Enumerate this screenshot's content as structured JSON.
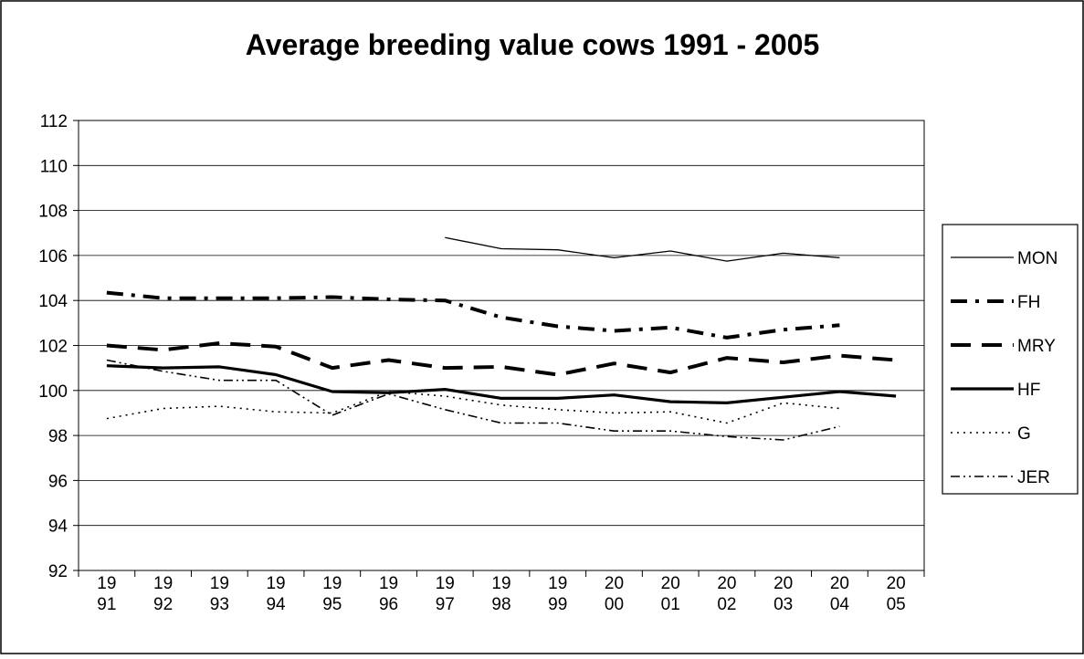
{
  "chart_data": {
    "type": "line",
    "title": "Average breeding value cows 1991 - 2005",
    "xlabel": "",
    "ylabel": "",
    "categories": [
      "1991",
      "1992",
      "1993",
      "1994",
      "1995",
      "1996",
      "1997",
      "1998",
      "1999",
      "2000",
      "2001",
      "2002",
      "2003",
      "2004",
      "2005"
    ],
    "category_labels": [
      [
        "19",
        "91"
      ],
      [
        "19",
        "92"
      ],
      [
        "19",
        "93"
      ],
      [
        "19",
        "94"
      ],
      [
        "19",
        "95"
      ],
      [
        "19",
        "96"
      ],
      [
        "19",
        "97"
      ],
      [
        "19",
        "98"
      ],
      [
        "19",
        "99"
      ],
      [
        "20",
        "00"
      ],
      [
        "20",
        "01"
      ],
      [
        "20",
        "02"
      ],
      [
        "20",
        "03"
      ],
      [
        "20",
        "04"
      ],
      [
        "20",
        "05"
      ]
    ],
    "ylim": [
      92,
      112
    ],
    "yticks": [
      92,
      94,
      96,
      98,
      100,
      102,
      104,
      106,
      108,
      110,
      112
    ],
    "grid": true,
    "legend_position": "right",
    "series": [
      {
        "name": "MON",
        "style": "thin-solid",
        "values": [
          null,
          null,
          null,
          null,
          null,
          null,
          106.8,
          106.3,
          106.25,
          105.9,
          106.2,
          105.75,
          106.1,
          105.9,
          null
        ]
      },
      {
        "name": "FH",
        "style": "thick-dash-dot",
        "values": [
          104.35,
          104.1,
          104.1,
          104.1,
          104.15,
          104.05,
          104.0,
          103.25,
          102.85,
          102.65,
          102.8,
          102.35,
          102.7,
          102.9,
          null
        ]
      },
      {
        "name": "MRY",
        "style": "thick-dash",
        "values": [
          102.0,
          101.8,
          102.1,
          101.95,
          101.0,
          101.35,
          101.0,
          101.05,
          100.7,
          101.2,
          100.8,
          101.45,
          101.25,
          101.55,
          101.35
        ]
      },
      {
        "name": "HF",
        "style": "thick-solid",
        "values": [
          101.1,
          101.0,
          101.05,
          100.7,
          99.95,
          99.9,
          100.05,
          99.65,
          99.65,
          99.8,
          99.5,
          99.45,
          99.7,
          99.95,
          99.75
        ]
      },
      {
        "name": "G",
        "style": "dotted",
        "values": [
          98.75,
          99.2,
          99.3,
          99.05,
          99.0,
          99.95,
          99.75,
          99.35,
          99.15,
          99.0,
          99.05,
          98.55,
          99.45,
          99.2,
          null
        ]
      },
      {
        "name": "JER",
        "style": "dash-dot-dot",
        "values": [
          101.35,
          100.85,
          100.45,
          100.45,
          98.9,
          99.85,
          99.15,
          98.55,
          98.55,
          98.2,
          98.2,
          97.95,
          97.8,
          98.4,
          null
        ]
      }
    ],
    "colors": {
      "line": "#000000",
      "background": "#ffffff",
      "grid": "#000000"
    }
  }
}
